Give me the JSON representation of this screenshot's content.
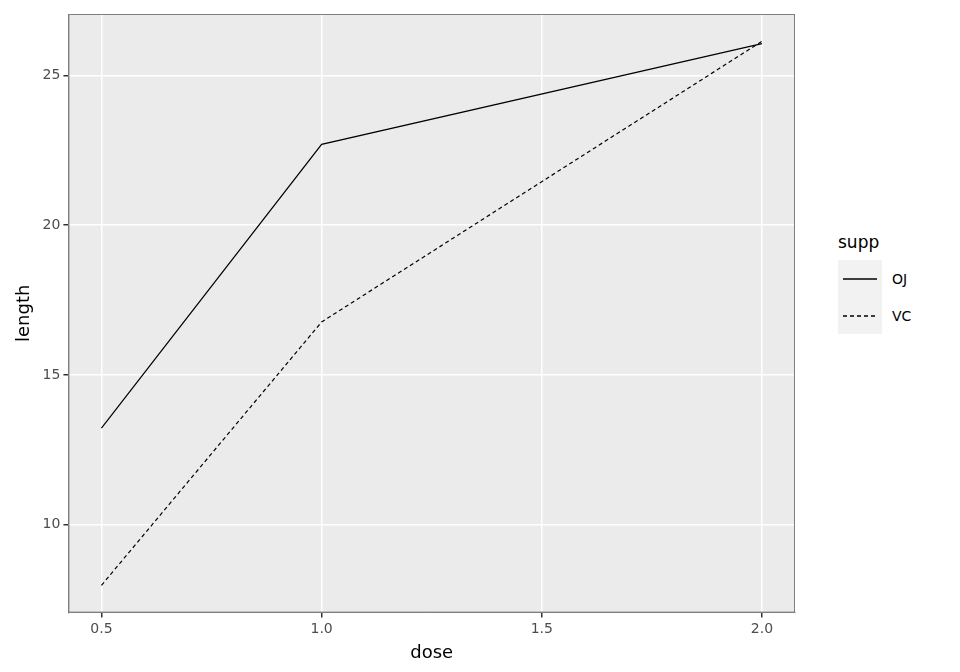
{
  "chart_data": {
    "type": "line",
    "x": [
      0.5,
      1,
      2
    ],
    "series": [
      {
        "name": "OJ",
        "color": "#000000",
        "line_style": "solid",
        "values": [
          13.23,
          22.7,
          26.06
        ]
      },
      {
        "name": "VC",
        "color": "#000000",
        "line_style": "dashed",
        "values": [
          7.98,
          16.77,
          26.14
        ]
      }
    ],
    "x_label": "dose",
    "y_label": "length",
    "xlim": [
      0.425,
      2.075
    ],
    "xticks": [
      0.5,
      {
        "value": 1,
        "label": "1.0"
      },
      1.5,
      {
        "value": 2,
        "label": "2.0"
      }
    ],
    "ylim": [
      7.07,
      27.05
    ],
    "yticks": [
      10,
      15,
      20,
      25
    ],
    "grid": true,
    "legend": "right",
    "legend_title": "supp"
  }
}
